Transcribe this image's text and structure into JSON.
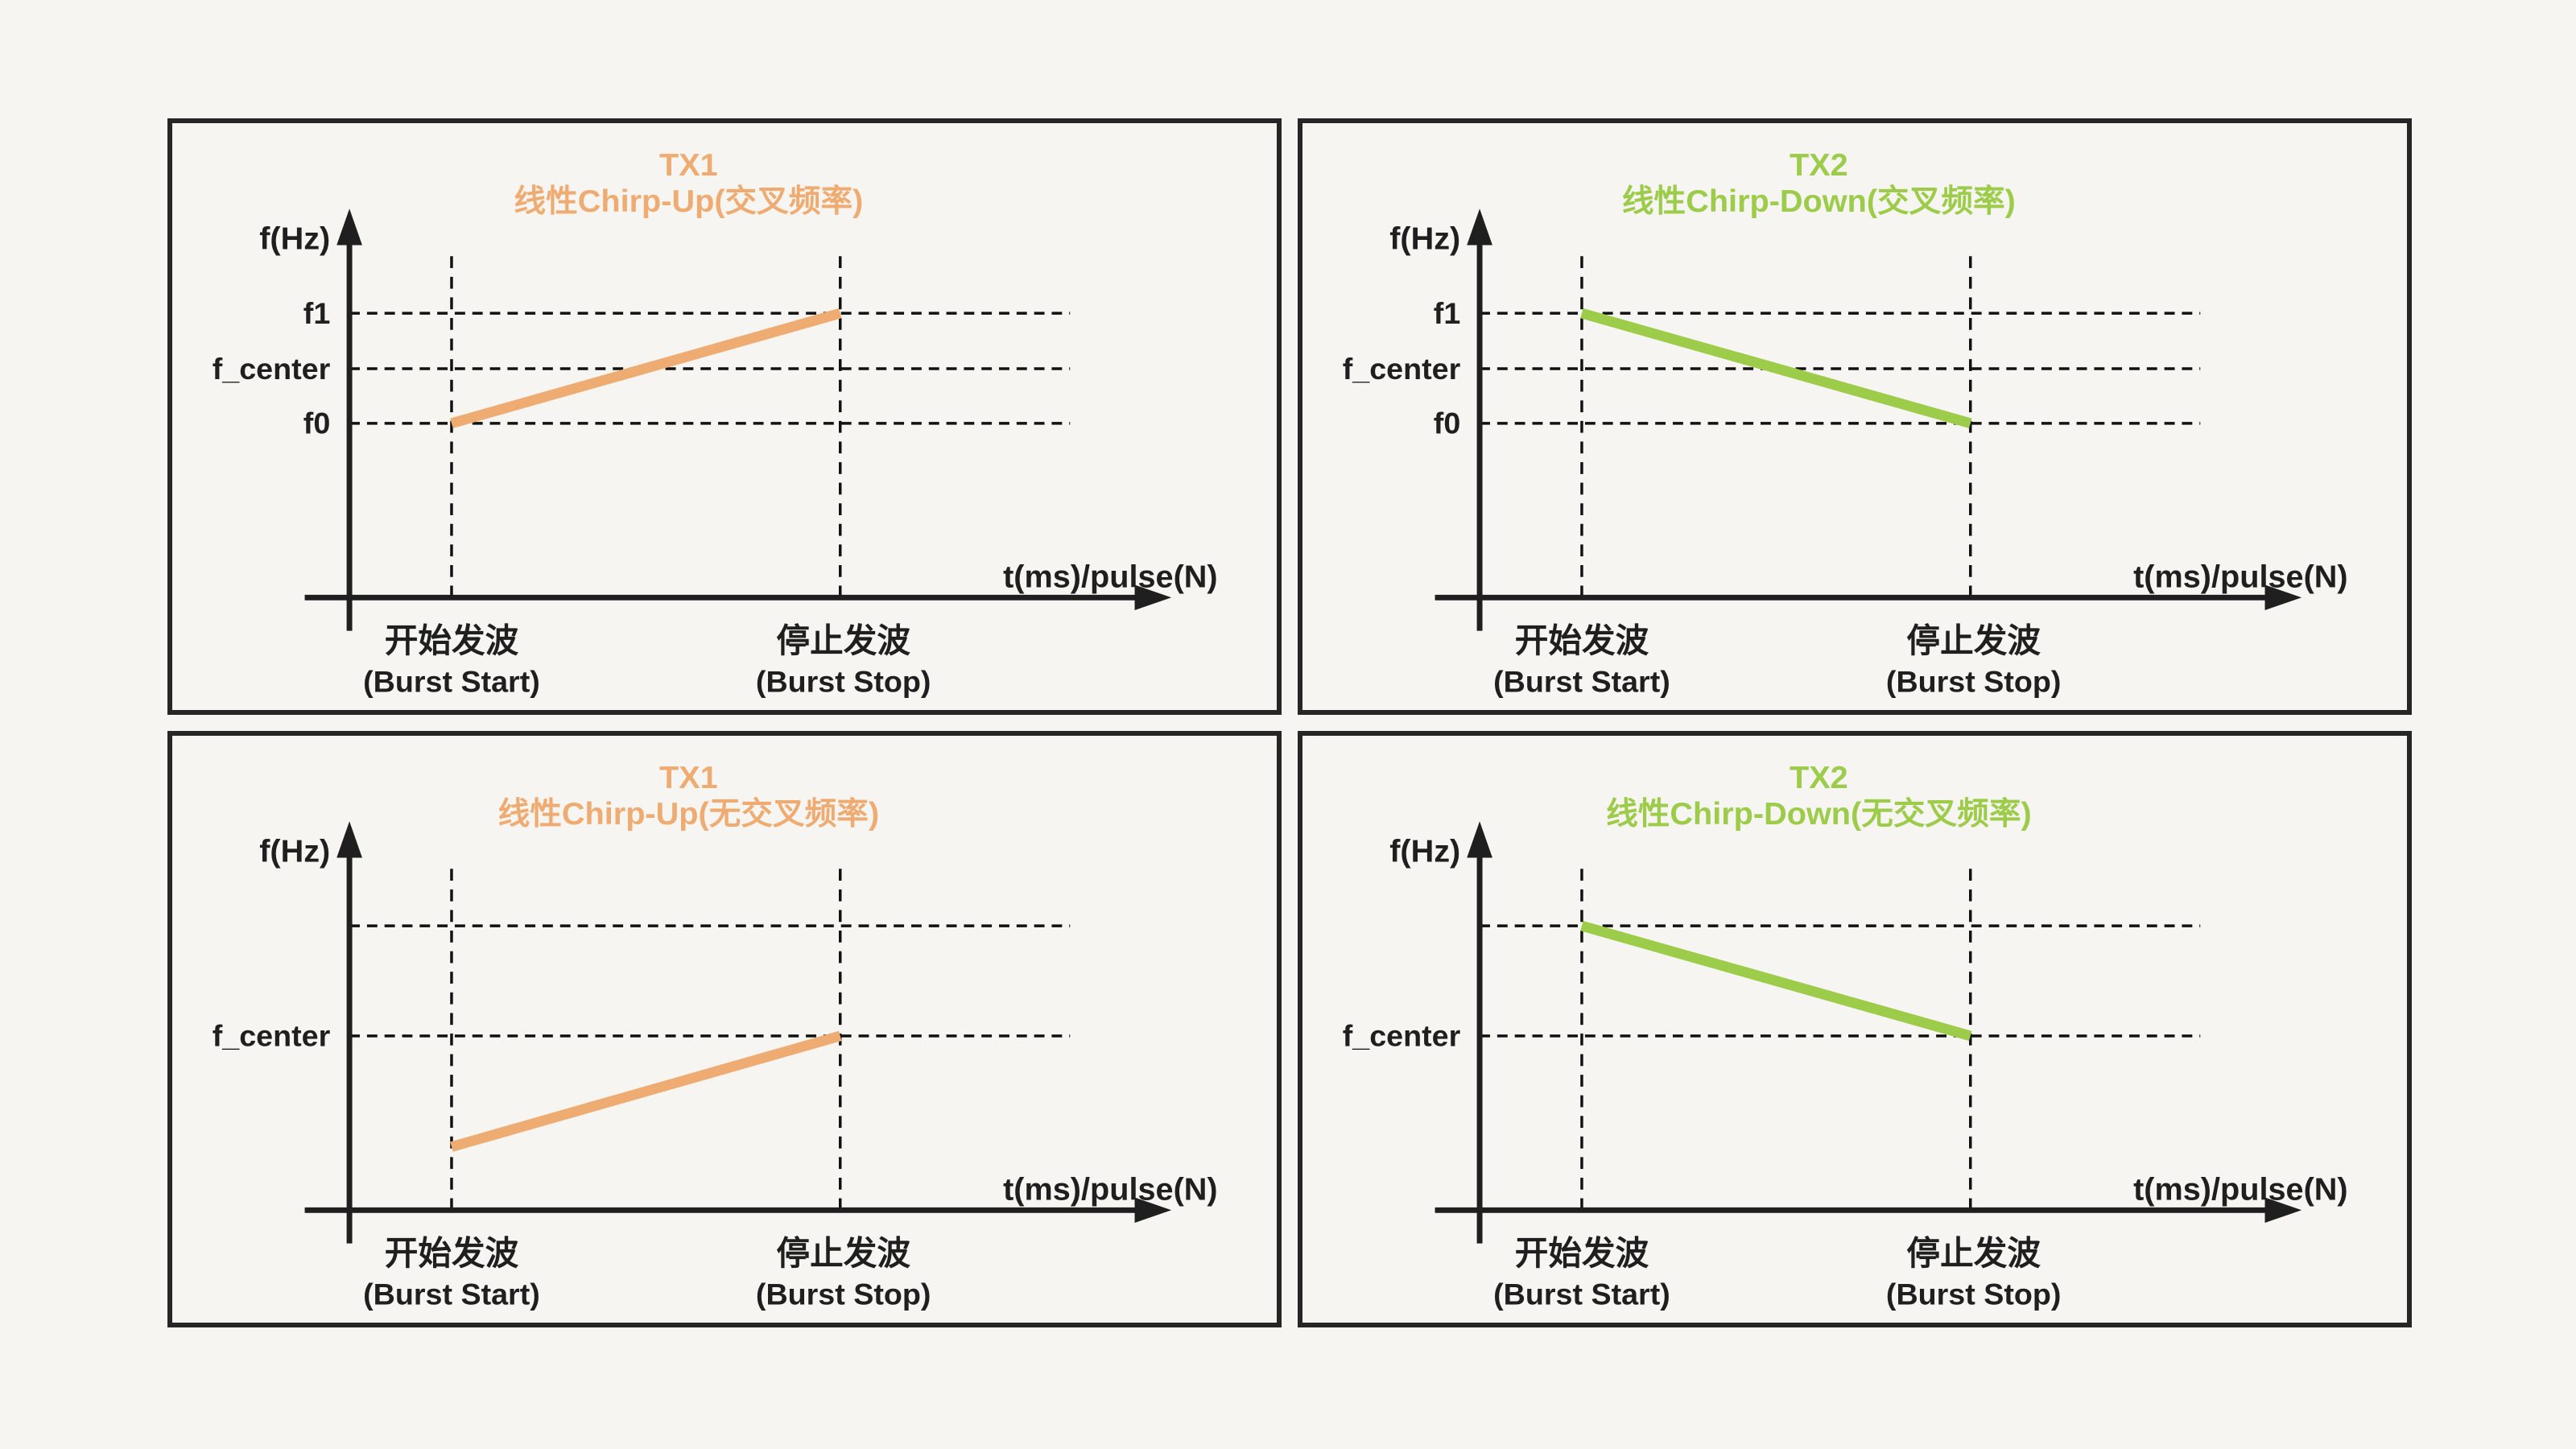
{
  "page": {
    "background_color": "#f7f5f1",
    "frame_border_color": "#262626",
    "axis_color": "#1f1f1f",
    "dash_color": "#111111"
  },
  "colors": {
    "orange": "#efac72",
    "green": "#9dcb4a"
  },
  "shared": {
    "y_axis_label": "f(Hz)",
    "x_axis_label": "t(ms)/pulse(N)",
    "burst_start_zh": "开始发波",
    "burst_start_en": "(Burst Start)",
    "burst_stop_zh": "停止发波",
    "burst_stop_en": "(Burst Stop)"
  },
  "panels": [
    {
      "id": "tx1-chirp-up-cross",
      "title": "TX1",
      "subtitle": "线性Chirp-Up(交叉频率)",
      "accent": "orange",
      "gridlines": [
        {
          "label": "f1",
          "level": "upper"
        },
        {
          "label": "f_center",
          "level": "mid"
        },
        {
          "label": "f0",
          "level": "lower"
        }
      ],
      "chirp": {
        "direction": "up",
        "from_level": "lower",
        "to_level": "upper",
        "from_x": "burst_start",
        "to_x": "burst_stop"
      }
    },
    {
      "id": "tx2-chirp-down-cross",
      "title": "TX2",
      "subtitle": "线性Chirp-Down(交叉频率)",
      "accent": "green",
      "gridlines": [
        {
          "label": "f1",
          "level": "upper"
        },
        {
          "label": "f_center",
          "level": "mid"
        },
        {
          "label": "f0",
          "level": "lower"
        }
      ],
      "chirp": {
        "direction": "down",
        "from_level": "upper",
        "to_level": "lower",
        "from_x": "burst_start",
        "to_x": "burst_stop"
      }
    },
    {
      "id": "tx1-chirp-up-no-cross",
      "title": "TX1",
      "subtitle": "线性Chirp-Up(无交叉频率)",
      "accent": "orange",
      "gridlines": [
        {
          "label": "",
          "level": "upper"
        },
        {
          "label": "f_center",
          "level": "lower"
        }
      ],
      "chirp": {
        "direction": "up",
        "from_level": "below",
        "to_level": "lower",
        "from_x": "burst_start",
        "to_x": "burst_stop"
      }
    },
    {
      "id": "tx2-chirp-down-no-cross",
      "title": "TX2",
      "subtitle": "线性Chirp-Down(无交叉频率)",
      "accent": "green",
      "gridlines": [
        {
          "label": "",
          "level": "upper"
        },
        {
          "label": "f_center",
          "level": "lower"
        }
      ],
      "chirp": {
        "direction": "down",
        "from_level": "upper",
        "to_level": "lower",
        "from_x": "burst_start",
        "to_x": "burst_stop"
      }
    }
  ],
  "chart_data": [
    {
      "type": "line",
      "title": "TX1 线性Chirp-Up(交叉频率)",
      "x": [
        "开始发波 (Burst Start)",
        "停止发波 (Burst Stop)"
      ],
      "series": [
        {
          "name": "TX1",
          "values": [
            "f0",
            "f1"
          ]
        }
      ],
      "y_gridlines": [
        "f1",
        "f_center",
        "f0"
      ],
      "grid": "dashed",
      "legend": "none"
    },
    {
      "type": "line",
      "title": "TX2 线性Chirp-Down(交叉频率)",
      "x": [
        "开始发波 (Burst Start)",
        "停止发波 (Burst Stop)"
      ],
      "series": [
        {
          "name": "TX2",
          "values": [
            "f1",
            "f0"
          ]
        }
      ],
      "y_gridlines": [
        "f1",
        "f_center",
        "f0"
      ],
      "grid": "dashed",
      "legend": "none"
    },
    {
      "type": "line",
      "title": "TX1 线性Chirp-Up(无交叉频率)",
      "x": [
        "开始发波 (Burst Start)",
        "停止发波 (Burst Stop)"
      ],
      "series": [
        {
          "name": "TX1",
          "values": [
            "below f_center",
            "f_center"
          ]
        }
      ],
      "y_gridlines": [
        "(unlabeled upper)",
        "f_center"
      ],
      "grid": "dashed",
      "legend": "none"
    },
    {
      "type": "line",
      "title": "TX2 线性Chirp-Down(无交叉频率)",
      "x": [
        "开始发波 (Burst Start)",
        "停止发波 (Burst Stop)"
      ],
      "series": [
        {
          "name": "TX2",
          "values": [
            "above f_center (upper line)",
            "f_center"
          ]
        }
      ],
      "y_gridlines": [
        "(unlabeled upper)",
        "f_center"
      ],
      "grid": "dashed",
      "legend": "none"
    }
  ]
}
